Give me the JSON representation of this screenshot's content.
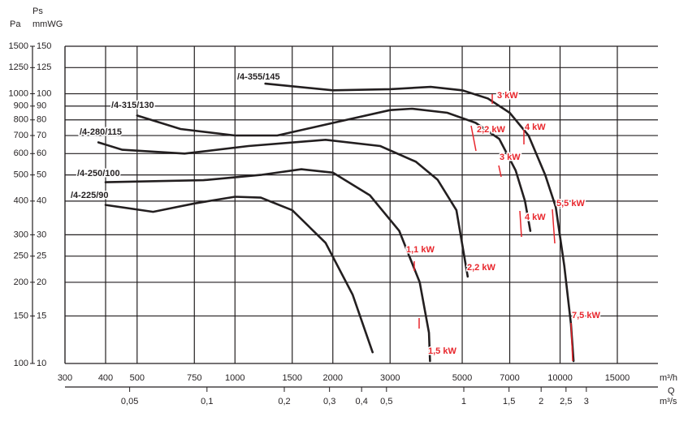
{
  "chart_data": {
    "type": "line",
    "x_scale": "log",
    "y_scale": "log",
    "grid": true,
    "xlabel": "m³/h",
    "x_symbol": "Q",
    "x2label": "m³/s",
    "ylabel": "Pa",
    "y_symbol": "Ps",
    "y2label": "mmWG",
    "xlim": [
      300,
      20000
    ],
    "xticks": [
      300,
      400,
      500,
      750,
      1000,
      1500,
      2000,
      3000,
      5000,
      7000,
      10000,
      15000
    ],
    "x2lim": [
      0.028,
      5.7
    ],
    "x2ticks": [
      {
        "value": 0.05,
        "label": "0,05"
      },
      {
        "value": 0.1,
        "label": "0,1"
      },
      {
        "value": 0.2,
        "label": "0,2"
      },
      {
        "value": 0.3,
        "label": "0,3"
      },
      {
        "value": 0.4,
        "label": "0,4"
      },
      {
        "value": 0.5,
        "label": "0,5"
      },
      1,
      {
        "value": 1.5,
        "label": "1,5"
      },
      2,
      {
        "value": 2.5,
        "label": "2,5"
      },
      3
    ],
    "ylim": [
      100,
      1500
    ],
    "yticks": [
      100,
      150,
      200,
      250,
      300,
      400,
      500,
      600,
      700,
      800,
      900,
      1000,
      1250,
      1500
    ],
    "y2lim": [
      10,
      150
    ],
    "y2ticks": [
      10,
      15,
      20,
      25,
      30,
      40,
      50,
      60,
      70,
      80,
      90,
      100,
      125,
      150
    ],
    "series": [
      {
        "name": "/4-355/145",
        "color": "#231f20",
        "x": [
          1240,
          2000,
          3000,
          4000,
          5000,
          6000,
          7000,
          8000,
          9000,
          9700,
          10300,
          10800,
          11000
        ],
        "values": [
          1090,
          1030,
          1040,
          1060,
          1030,
          960,
          850,
          700,
          500,
          380,
          230,
          140,
          102
        ]
      },
      {
        "name": "/4-315/130",
        "color": "#231f20",
        "x": [
          500,
          680,
          1000,
          1350,
          2100,
          3000,
          3500,
          4500,
          5500,
          6500,
          7300,
          7800,
          8100
        ],
        "values": [
          830,
          740,
          700,
          700,
          790,
          870,
          880,
          850,
          780,
          680,
          520,
          400,
          310
        ]
      },
      {
        "name": "/4-280/115",
        "color": "#231f20",
        "x": [
          380,
          450,
          700,
          1100,
          1900,
          2800,
          3600,
          4200,
          4800,
          5200
        ],
        "values": [
          660,
          620,
          600,
          640,
          675,
          640,
          560,
          480,
          370,
          210
        ]
      },
      {
        "name": "/4-250/100",
        "color": "#231f20",
        "x": [
          400,
          800,
          1200,
          1600,
          2000,
          2600,
          3200,
          3700,
          3950,
          3980
        ],
        "values": [
          470,
          478,
          500,
          525,
          510,
          420,
          310,
          200,
          130,
          102
        ]
      },
      {
        "name": "/4-225/90",
        "color": "#231f20",
        "x": [
          400,
          560,
          750,
          1000,
          1200,
          1500,
          1900,
          2300,
          2650
        ],
        "values": [
          387,
          365,
          392,
          415,
          412,
          370,
          280,
          180,
          110
        ]
      }
    ],
    "power_labels": [
      "1,1 kW",
      "1,5 kW",
      "2,2 kW",
      "2,2 kW",
      "3 kW",
      "3 kW",
      "4 kW",
      "4 kW",
      "5,5 kW",
      "7,5 kW"
    ],
    "power_color": "#e8262c"
  }
}
